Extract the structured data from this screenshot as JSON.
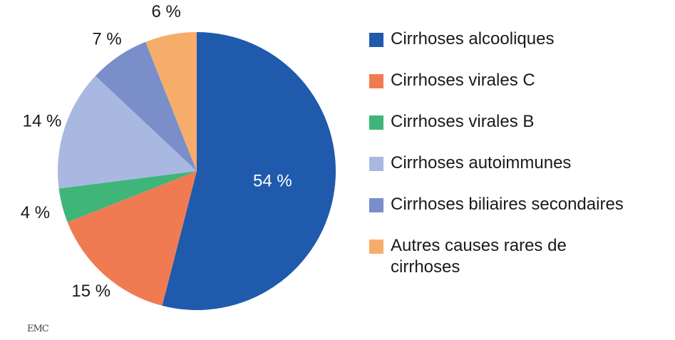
{
  "chart_data": {
    "type": "pie",
    "slices": [
      {
        "label": "Cirrhoses alcooliques",
        "value": 54,
        "value_label": "54 %",
        "color": "#1f5aac"
      },
      {
        "label": "Cirrhoses virales C",
        "value": 15,
        "value_label": "15 %",
        "color": "#f07b52"
      },
      {
        "label": "Cirrhoses virales B",
        "value": 4,
        "value_label": "4 %",
        "color": "#3fb57a"
      },
      {
        "label": "Cirrhoses autoimmunes",
        "value": 14,
        "value_label": "14 %",
        "color": "#a9b8e0"
      },
      {
        "label": "Cirrhoses biliaires secondaires",
        "value": 7,
        "value_label": "7 %",
        "color": "#7a8fca"
      },
      {
        "label": "Autres causes rares de cirrhoses",
        "value": 6,
        "value_label": "6 %",
        "color": "#f6ad6a"
      }
    ],
    "start_angle": "top",
    "direction": "clockwise",
    "legend_position": "right"
  },
  "watermark": "EMC"
}
